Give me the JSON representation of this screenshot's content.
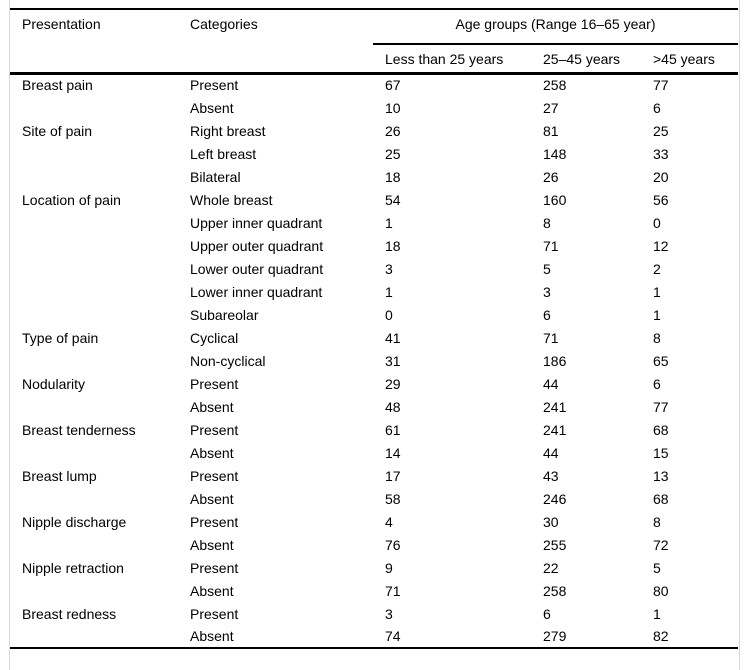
{
  "table": {
    "header": {
      "presentation": "Presentation",
      "categories": "Categories",
      "age_groups": "Age groups (Range 16–65 year)",
      "sub_columns": [
        "Less than 25 years",
        "25–45 years",
        ">45 years"
      ]
    },
    "rows": [
      {
        "cells": [
          "Breast pain",
          "Present",
          "67",
          "258",
          "77"
        ]
      },
      {
        "cells": [
          "",
          "Absent",
          "10",
          "27",
          "6"
        ]
      },
      {
        "cells": [
          "Site of pain",
          "Right breast",
          "26",
          "81",
          "25"
        ]
      },
      {
        "cells": [
          "",
          "Left breast",
          "25",
          "148",
          "33"
        ]
      },
      {
        "cells": [
          "",
          "Bilateral",
          "18",
          "26",
          "20"
        ]
      },
      {
        "cells": [
          "Location of pain",
          "Whole breast",
          "54",
          "160",
          "56"
        ]
      },
      {
        "cells": [
          "",
          "Upper inner quadrant",
          "1",
          "8",
          "0"
        ]
      },
      {
        "cells": [
          "",
          "Upper outer quadrant",
          "18",
          "71",
          "12"
        ]
      },
      {
        "cells": [
          "",
          "Lower outer quadrant",
          "3",
          "5",
          "2"
        ]
      },
      {
        "cells": [
          "",
          "Lower inner quadrant",
          "1",
          "3",
          "1"
        ]
      },
      {
        "cells": [
          "",
          "Subareolar",
          "0",
          "6",
          "1"
        ]
      },
      {
        "cells": [
          "Type of pain",
          "Cyclical",
          "41",
          "71",
          "8"
        ]
      },
      {
        "cells": [
          "",
          "Non-cyclical",
          "31",
          "186",
          "65"
        ]
      },
      {
        "cells": [
          "Nodularity",
          "Present",
          "29",
          "44",
          "6"
        ]
      },
      {
        "cells": [
          "",
          "Absent",
          "48",
          "241",
          "77"
        ]
      },
      {
        "cells": [
          "Breast tenderness",
          "Present",
          "61",
          "241",
          "68"
        ]
      },
      {
        "cells": [
          "",
          "Absent",
          "14",
          "44",
          "15"
        ]
      },
      {
        "cells": [
          "Breast lump",
          "Present",
          "17",
          "43",
          "13"
        ]
      },
      {
        "cells": [
          "",
          "Absent",
          "58",
          "246",
          "68"
        ]
      },
      {
        "cells": [
          "Nipple discharge",
          "Present",
          "4",
          "30",
          "8"
        ]
      },
      {
        "cells": [
          "",
          "Absent",
          "76",
          "255",
          "72"
        ]
      },
      {
        "cells": [
          "Nipple retraction",
          "Present",
          "9",
          "22",
          "5"
        ]
      },
      {
        "cells": [
          "",
          "Absent",
          "71",
          "258",
          "80"
        ]
      },
      {
        "cells": [
          "Breast redness",
          "Present",
          "3",
          "6",
          "1"
        ]
      },
      {
        "cells": [
          "",
          "Absent",
          "74",
          "279",
          "82"
        ]
      }
    ]
  },
  "colors": {
    "text": "#000000",
    "rule": "#000000",
    "figure_edge": "#d9d9d9",
    "background": "#ffffff"
  }
}
